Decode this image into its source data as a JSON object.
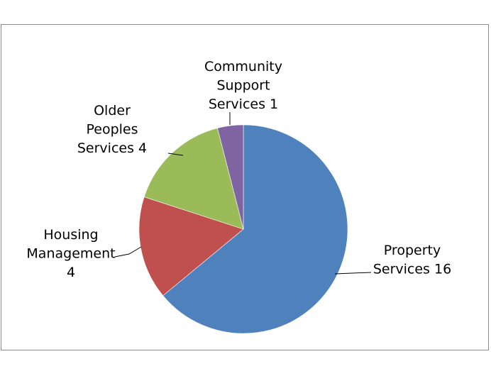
{
  "chart_data": {
    "type": "pie",
    "title": "",
    "categories": [
      "Property Services",
      "Housing Management",
      "Older Peoples Services",
      "Community Support Services"
    ],
    "values": [
      16,
      4,
      4,
      1
    ],
    "colors": [
      "#4F81BD",
      "#C0504D",
      "#9BBB59",
      "#8064A2"
    ],
    "data_labels": [
      [
        "Property",
        "Services 16"
      ],
      [
        "Housing",
        "Management",
        "4"
      ],
      [
        "Older",
        "Peoples",
        "Services 4"
      ],
      [
        "Community",
        "Support",
        "Services 1"
      ]
    ],
    "start_angle": "12 o'clock",
    "direction": "clockwise",
    "legend": "none"
  }
}
